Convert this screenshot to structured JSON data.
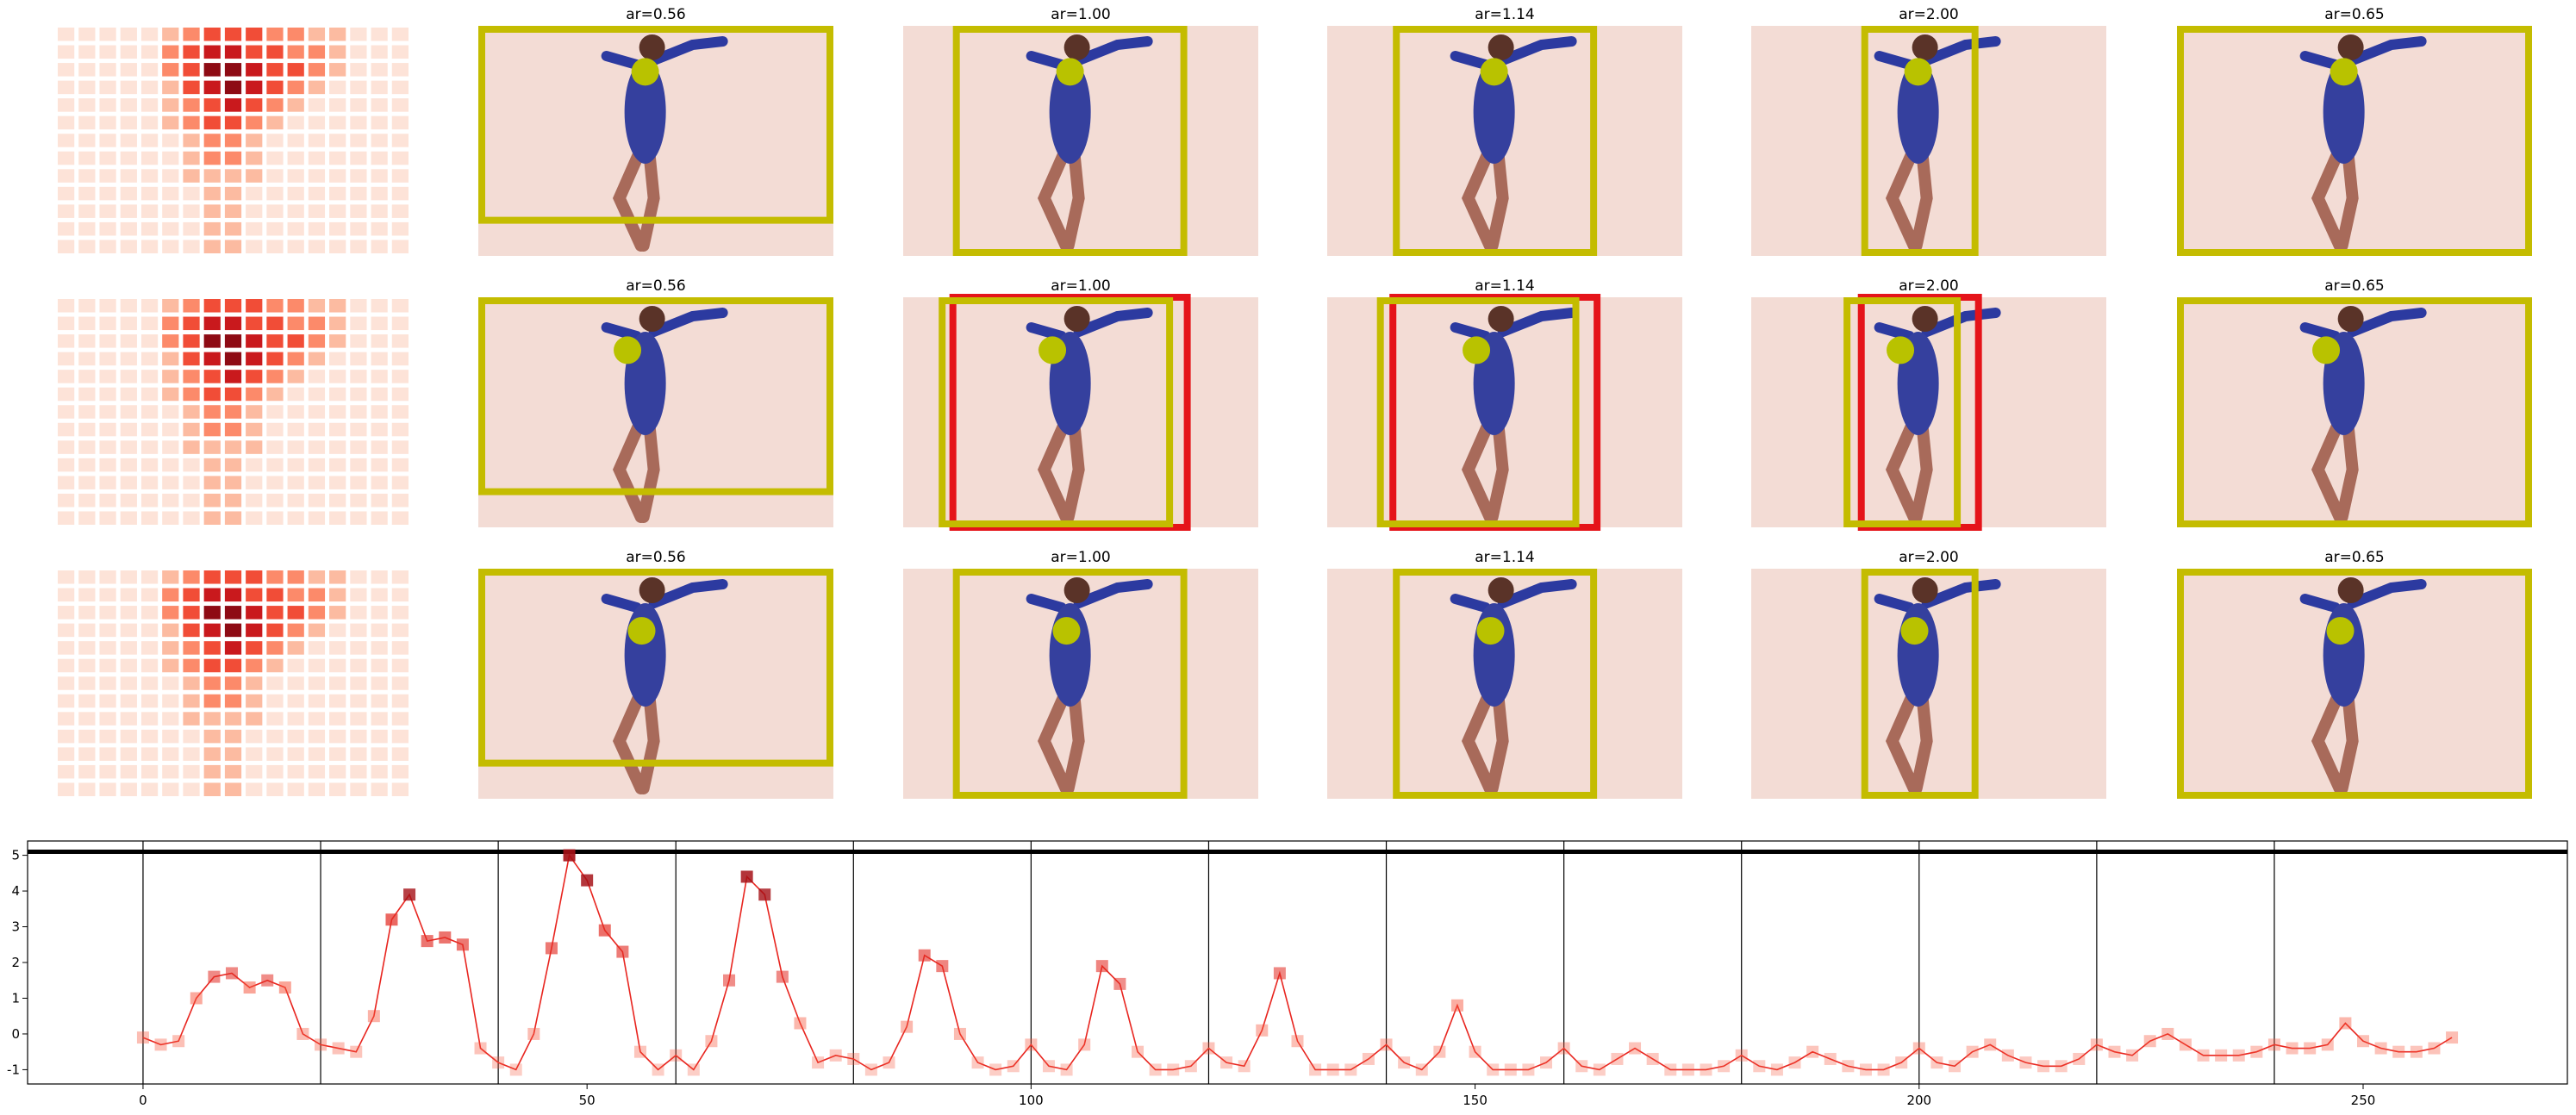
{
  "panels": {
    "titles": [
      "ar=0.56",
      "ar=1.00",
      "ar=1.14",
      "ar=2.00",
      "ar=0.65"
    ]
  },
  "heatmap": [
    [
      0,
      0,
      0,
      0,
      0,
      1,
      2,
      3,
      3,
      3,
      2,
      2,
      1,
      1,
      0,
      0,
      0
    ],
    [
      0,
      0,
      0,
      0,
      0,
      2,
      3,
      4,
      4,
      3,
      3,
      2,
      2,
      1,
      0,
      0,
      0
    ],
    [
      0,
      0,
      0,
      0,
      0,
      2,
      3,
      5,
      5,
      4,
      3,
      3,
      2,
      1,
      0,
      0,
      0
    ],
    [
      0,
      0,
      0,
      0,
      0,
      1,
      3,
      4,
      5,
      4,
      3,
      2,
      1,
      0,
      0,
      0,
      0
    ],
    [
      0,
      0,
      0,
      0,
      0,
      1,
      2,
      3,
      4,
      3,
      2,
      1,
      0,
      0,
      0,
      0,
      0
    ],
    [
      0,
      0,
      0,
      0,
      0,
      1,
      2,
      3,
      3,
      2,
      1,
      0,
      0,
      0,
      0,
      0,
      0
    ],
    [
      0,
      0,
      0,
      0,
      0,
      0,
      1,
      2,
      2,
      1,
      0,
      0,
      0,
      0,
      0,
      0,
      0
    ],
    [
      0,
      0,
      0,
      0,
      0,
      0,
      1,
      2,
      2,
      1,
      0,
      0,
      0,
      0,
      0,
      0,
      0
    ],
    [
      0,
      0,
      0,
      0,
      0,
      0,
      1,
      1,
      1,
      1,
      0,
      0,
      0,
      0,
      0,
      0,
      0
    ],
    [
      0,
      0,
      0,
      0,
      0,
      0,
      0,
      1,
      1,
      0,
      0,
      0,
      0,
      0,
      0,
      0,
      0
    ],
    [
      0,
      0,
      0,
      0,
      0,
      0,
      0,
      1,
      1,
      0,
      0,
      0,
      0,
      0,
      0,
      0,
      0
    ],
    [
      0,
      0,
      0,
      0,
      0,
      0,
      0,
      1,
      1,
      0,
      0,
      0,
      0,
      0,
      0,
      0,
      0
    ],
    [
      0,
      0,
      0,
      0,
      0,
      0,
      0,
      1,
      1,
      0,
      0,
      0,
      0,
      0,
      0,
      0,
      0
    ]
  ],
  "chart_data": {
    "type": "line",
    "color": "#e8251f",
    "x": [
      0,
      2,
      4,
      6,
      8,
      10,
      12,
      14,
      16,
      18,
      20,
      22,
      24,
      26,
      28,
      30,
      32,
      34,
      36,
      38,
      40,
      42,
      44,
      46,
      48,
      50,
      52,
      54,
      56,
      58,
      60,
      62,
      64,
      66,
      68,
      70,
      72,
      74,
      76,
      78,
      80,
      82,
      84,
      86,
      88,
      90,
      92,
      94,
      96,
      98,
      100,
      102,
      104,
      106,
      108,
      110,
      112,
      114,
      116,
      118,
      120,
      122,
      124,
      126,
      128,
      130,
      132,
      134,
      136,
      138,
      140,
      142,
      144,
      146,
      148,
      150,
      152,
      154,
      156,
      158,
      160,
      162,
      164,
      166,
      168,
      170,
      172,
      174,
      176,
      178,
      180,
      182,
      184,
      186,
      188,
      190,
      192,
      194,
      196,
      198,
      200,
      202,
      204,
      206,
      208,
      210,
      212,
      214,
      216,
      218,
      220,
      222,
      224,
      226,
      228,
      230,
      232,
      234,
      236,
      238,
      240,
      242,
      244,
      246,
      248,
      250,
      252,
      254,
      256,
      258,
      260
    ],
    "values": [
      -0.1,
      -0.3,
      -0.2,
      1.0,
      1.6,
      1.7,
      1.3,
      1.5,
      1.3,
      0.0,
      -0.3,
      -0.4,
      -0.5,
      0.5,
      3.2,
      3.9,
      2.6,
      2.7,
      2.5,
      -0.4,
      -0.8,
      -1.0,
      0.0,
      2.4,
      5.0,
      4.3,
      2.9,
      2.3,
      -0.5,
      -1.0,
      -0.6,
      -1.0,
      -0.2,
      1.5,
      4.4,
      3.9,
      1.6,
      0.3,
      -0.8,
      -0.6,
      -0.7,
      -1.0,
      -0.8,
      0.2,
      2.2,
      1.9,
      0.0,
      -0.8,
      -1.0,
      -0.9,
      -0.3,
      -0.9,
      -1.0,
      -0.3,
      1.9,
      1.4,
      -0.5,
      -1.0,
      -1.0,
      -0.9,
      -0.4,
      -0.8,
      -0.9,
      0.1,
      1.7,
      -0.2,
      -1.0,
      -1.0,
      -1.0,
      -0.7,
      -0.3,
      -0.8,
      -1.0,
      -0.5,
      0.8,
      -0.5,
      -1.0,
      -1.0,
      -1.0,
      -0.8,
      -0.4,
      -0.9,
      -1.0,
      -0.7,
      -0.4,
      -0.7,
      -1.0,
      -1.0,
      -1.0,
      -0.9,
      -0.6,
      -0.9,
      -1.0,
      -0.8,
      -0.5,
      -0.7,
      -0.9,
      -1.0,
      -1.0,
      -0.8,
      -0.4,
      -0.8,
      -0.9,
      -0.5,
      -0.3,
      -0.6,
      -0.8,
      -0.9,
      -0.9,
      -0.7,
      -0.3,
      -0.5,
      -0.6,
      -0.2,
      0.0,
      -0.3,
      -0.6,
      -0.6,
      -0.6,
      -0.5,
      -0.3,
      -0.4,
      -0.4,
      -0.3,
      0.3,
      -0.2,
      -0.4,
      -0.5,
      -0.5,
      -0.4,
      -0.1
    ],
    "xlim": [
      -13,
      273
    ],
    "ylim": [
      -1.4,
      5.4
    ],
    "xticks": [
      0,
      50,
      100,
      150,
      200,
      250
    ],
    "yticks": [
      -1,
      0,
      1,
      2,
      3,
      4,
      5
    ],
    "vlines": [
      0,
      20,
      40,
      60,
      80,
      100,
      120,
      140,
      160,
      180,
      200,
      220,
      240
    ],
    "hline": 5.1
  }
}
